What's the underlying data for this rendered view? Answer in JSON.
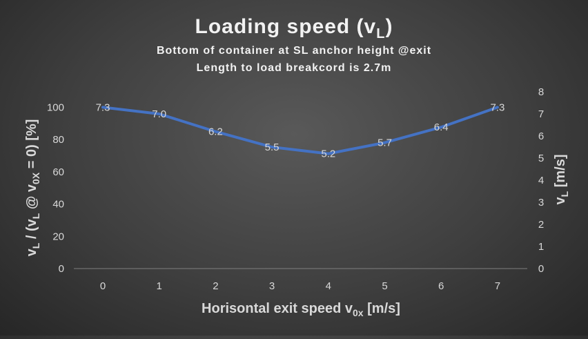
{
  "chart_data": {
    "type": "line",
    "title": "Loading speed (v",
    "title_sub": "L",
    "title_end": ")",
    "subtitle_lines": [
      "Bottom of container at SL anchor height @exit",
      "Length to load breakcord is 2.7m"
    ],
    "x": [
      0,
      1,
      2,
      3,
      4,
      5,
      6,
      7
    ],
    "x_tick_labels": [
      "0",
      "1",
      "2",
      "3",
      "4",
      "5",
      "6",
      "7"
    ],
    "values": [
      7.3,
      7.0,
      6.2,
      5.5,
      5.2,
      5.7,
      6.4,
      7.3
    ],
    "value_labels": [
      "7.3",
      "7.0",
      "6.2",
      "5.5",
      "5.2",
      "5.7",
      "6.4",
      "7.3"
    ],
    "y_left_ticks": [
      "0",
      "20",
      "40",
      "60",
      "80",
      "100"
    ],
    "y_left_range": [
      0,
      100
    ],
    "y_right_ticks": [
      "0",
      "1",
      "2",
      "3",
      "4",
      "5",
      "6",
      "7",
      "8"
    ],
    "y_right_range": [
      0,
      8
    ],
    "xlabel": {
      "main": "Horisontal exit speed v",
      "sub": "0x",
      "end": " [m/s]"
    },
    "ylabel_left": {
      "a": "v",
      "a_sub": "L",
      "b": " / (v",
      "b_sub": "L",
      "c": " @ v",
      "c_sub": "0X",
      "d": " = 0) [%]"
    },
    "ylabel_right": {
      "a": "v",
      "a_sub": "L",
      "b": " [m/s]"
    },
    "grid": false,
    "legend": "none",
    "line_color": "#4472c4",
    "background_color": "#404040"
  }
}
